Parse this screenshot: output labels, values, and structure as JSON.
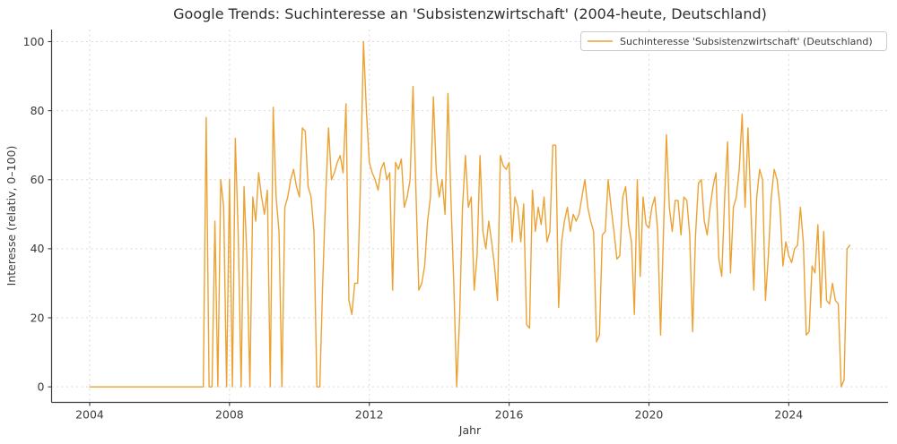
{
  "chart_data": {
    "type": "line",
    "title": "Google Trends: Suchinteresse an 'Subsistenzwirtschaft' (2004-heute, Deutschland)",
    "xlabel": "Jahr",
    "ylabel": "Interesse (relativ, 0–100)",
    "legend": [
      "Suchinteresse 'Subsistenzwirtschaft' (Deutschland)"
    ],
    "legend_position": "upper right",
    "grid": true,
    "grid_style": "dashed",
    "x_ticks": [
      2004,
      2008,
      2012,
      2016,
      2020,
      2024
    ],
    "y_ticks": [
      0,
      20,
      40,
      60,
      80,
      100
    ],
    "xlim": [
      2002.91,
      2026.84
    ],
    "ylim": [
      -4.5,
      103.5
    ],
    "background_color": "#ffffff",
    "series": [
      {
        "name": "Suchinteresse 'Subsistenzwirtschaft' (Deutschland)",
        "color": "#ECA233",
        "x_start": 2004.0,
        "x_step_years": 0.0833333,
        "x_unit": "monthly, Jan 2004 - Oct 2025",
        "values": [
          0,
          0,
          0,
          0,
          0,
          0,
          0,
          0,
          0,
          0,
          0,
          0,
          0,
          0,
          0,
          0,
          0,
          0,
          0,
          0,
          0,
          0,
          0,
          0,
          0,
          0,
          0,
          0,
          0,
          0,
          0,
          0,
          0,
          0,
          0,
          0,
          0,
          0,
          0,
          0,
          78,
          0,
          0,
          48,
          0,
          60,
          52,
          0,
          60,
          0,
          72,
          44,
          0,
          58,
          37,
          0,
          55,
          48,
          62,
          55,
          50,
          57,
          0,
          81,
          55,
          45,
          0,
          52,
          55,
          60,
          63,
          58,
          55,
          75,
          74,
          58,
          55,
          45,
          0,
          0,
          30,
          55,
          75,
          60,
          62,
          65,
          67,
          62,
          82,
          25,
          21,
          30,
          30,
          60,
          100,
          80,
          65,
          62,
          60,
          57,
          63,
          65,
          60,
          62,
          28,
          65,
          63,
          66,
          52,
          55,
          60,
          87,
          57,
          28,
          30,
          35,
          48,
          55,
          84,
          62,
          55,
          60,
          50,
          85,
          55,
          30,
          0,
          20,
          52,
          67,
          52,
          55,
          28,
          38,
          67,
          45,
          40,
          48,
          42,
          35,
          25,
          67,
          64,
          63,
          65,
          42,
          55,
          52,
          42,
          53,
          18,
          17,
          57,
          45,
          52,
          47,
          55,
          42,
          45,
          70,
          70,
          23,
          42,
          48,
          52,
          45,
          50,
          48,
          50,
          55,
          60,
          52,
          48,
          45,
          13,
          15,
          44,
          45,
          60,
          52,
          45,
          37,
          38,
          55,
          58,
          47,
          42,
          21,
          60,
          32,
          55,
          47,
          46,
          52,
          55,
          45,
          15,
          45,
          73,
          52,
          45,
          54,
          54,
          44,
          55,
          54,
          44,
          16,
          44,
          59,
          60,
          48,
          44,
          52,
          58,
          62,
          37,
          32,
          55,
          71,
          33,
          52,
          55,
          63,
          79,
          52,
          75,
          52,
          28,
          55,
          63,
          60,
          25,
          38,
          55,
          63,
          60,
          52,
          35,
          42,
          38,
          36,
          40,
          41,
          52,
          42,
          15,
          16,
          35,
          33,
          47,
          23,
          45,
          25,
          24,
          30,
          25,
          24,
          0,
          2,
          40,
          41
        ]
      }
    ],
    "colors": {
      "line": "#ECA233",
      "grid": "#d9d9d9",
      "spine": "#3b3b3b",
      "text": "#3b3b3b",
      "title_text": "#2f2f2f",
      "legend_border": "#cccccc",
      "background": "#ffffff"
    }
  }
}
